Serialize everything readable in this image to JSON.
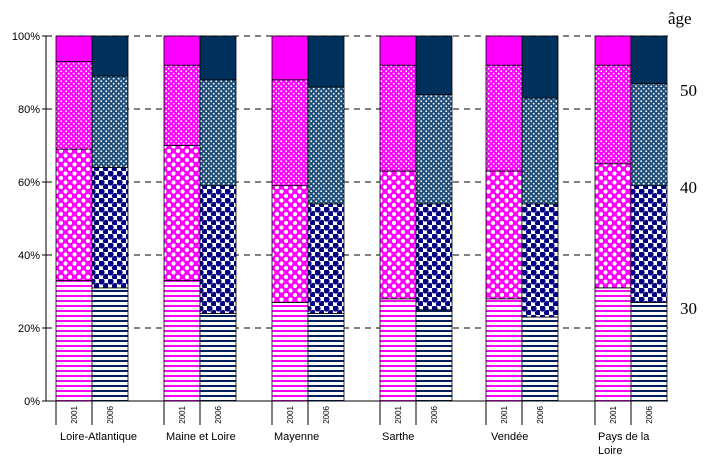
{
  "chart_data": {
    "type": "bar",
    "stacked": true,
    "percent_stacked": true,
    "grid": "horizontal dashed",
    "ylim": [
      0,
      100
    ],
    "y_ticks": [
      "0%",
      "20%",
      "40%",
      "60%",
      "80%",
      "100%"
    ],
    "right_axis_title": "âge",
    "right_axis_ticks": [
      "50",
      "40",
      "30"
    ],
    "groups": [
      {
        "label": "Loire-Atlantique",
        "years": [
          "2001",
          "2006"
        ]
      },
      {
        "label": "Maine et Loire",
        "years": [
          "2001",
          "2006"
        ]
      },
      {
        "label": "Mayenne",
        "years": [
          "2001",
          "2006"
        ]
      },
      {
        "label": "Sarthe",
        "years": [
          "2001",
          "2006"
        ]
      },
      {
        "label": "Vendée",
        "years": [
          "2001",
          "2006"
        ]
      },
      {
        "label": "Pays de la Loire",
        "years": [
          "2001",
          "2006"
        ]
      }
    ],
    "bars": [
      {
        "group": "Loire-Atlantique",
        "year": "2001",
        "segments": [
          33,
          36,
          24,
          7
        ]
      },
      {
        "group": "Loire-Atlantique",
        "year": "2006",
        "segments": [
          31,
          33,
          25,
          11
        ]
      },
      {
        "group": "Maine et Loire",
        "year": "2001",
        "segments": [
          33,
          37,
          22,
          8
        ]
      },
      {
        "group": "Maine et Loire",
        "year": "2006",
        "segments": [
          24,
          35,
          29,
          12
        ]
      },
      {
        "group": "Mayenne",
        "year": "2001",
        "segments": [
          27,
          32,
          29,
          12
        ]
      },
      {
        "group": "Mayenne",
        "year": "2006",
        "segments": [
          24,
          30,
          32,
          14
        ]
      },
      {
        "group": "Sarthe",
        "year": "2001",
        "segments": [
          28,
          35,
          29,
          8
        ]
      },
      {
        "group": "Sarthe",
        "year": "2006",
        "segments": [
          25,
          29,
          30,
          16
        ]
      },
      {
        "group": "Vendée",
        "year": "2001",
        "segments": [
          28,
          35,
          29,
          8
        ]
      },
      {
        "group": "Vendée",
        "year": "2006",
        "segments": [
          23,
          31,
          29,
          17
        ]
      },
      {
        "group": "Pays de la Loire",
        "year": "2001",
        "segments": [
          31,
          34,
          27,
          8
        ]
      },
      {
        "group": "Pays de la Loire",
        "year": "2006",
        "segments": [
          27,
          32,
          28,
          13
        ]
      }
    ],
    "colors": {
      "pink": "#ff00ff",
      "navy": "#002060",
      "dark_navy": "#00305c",
      "white": "#ffffff",
      "grid": "#000000"
    }
  }
}
